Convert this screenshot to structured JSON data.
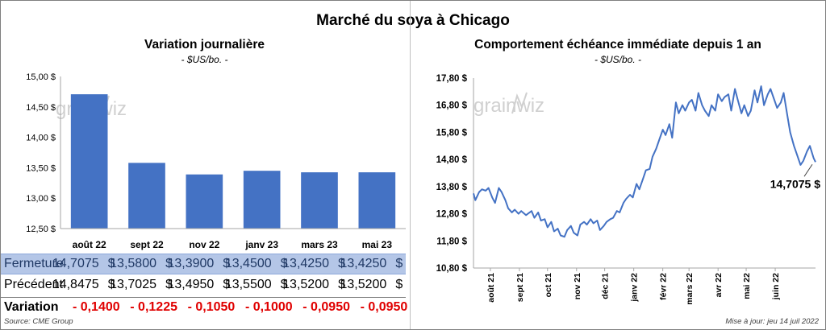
{
  "title": "Marché du soya à Chicago",
  "left": {
    "title": "Variation journalière",
    "unit": "- $US/bo. -",
    "watermark": "grainwiz"
  },
  "right": {
    "title": "Comportement échéance immédiate depuis 1 an",
    "unit": "- $US/bo. -",
    "watermark": "grainwiz",
    "last_label": "14,7075 $"
  },
  "table": {
    "currency": "$",
    "rows": {
      "fermeture": {
        "label": "Fermeture",
        "values": [
          "14,7075",
          "13,5800",
          "13,3900",
          "13,4500",
          "13,4250",
          "13,4250"
        ]
      },
      "precedent": {
        "label": "Précédent",
        "values": [
          "14,8475",
          "13,7025",
          "13,4950",
          "13,5500",
          "13,5200",
          "13,5200"
        ]
      },
      "variation": {
        "label": "Variation",
        "values": [
          "- 0,1400",
          "- 0,1225",
          "- 0,1050",
          "- 0,1000",
          "- 0,0950",
          "- 0,0950"
        ]
      }
    }
  },
  "footer": {
    "source": "Source: CME Group",
    "updated": "Mise à jour: jeu 14 juil 2022"
  },
  "colors": {
    "bar": "#4472c4",
    "line": "#4472c4",
    "negative": "#e00000",
    "highlight_row": "#b4c6e7"
  },
  "chart_data": [
    {
      "type": "bar",
      "title": "Variation journalière",
      "subtitle": "- $US/bo. -",
      "categories": [
        "août 22",
        "sept 22",
        "nov 22",
        "janv 23",
        "mars 23",
        "mai 23"
      ],
      "values": [
        14.7075,
        13.58,
        13.39,
        13.45,
        13.425,
        13.425
      ],
      "ylim": [
        12.5,
        15.0
      ],
      "yticks": [
        12.5,
        13.0,
        13.5,
        14.0,
        14.5,
        15.0
      ],
      "ytick_labels": [
        "12,50 $",
        "13,00 $",
        "13,50 $",
        "14,00 $",
        "14,50 $",
        "15,00 $"
      ],
      "grid": false,
      "legend": "none"
    },
    {
      "type": "line",
      "title": "Comportement échéance immédiate depuis 1 an",
      "subtitle": "- $US/bo. -",
      "ylim": [
        10.8,
        17.8
      ],
      "yticks": [
        10.8,
        11.8,
        12.8,
        13.8,
        14.8,
        15.8,
        16.8,
        17.8
      ],
      "ytick_labels": [
        "10,80 $",
        "11,80 $",
        "12,80 $",
        "13,80 $",
        "14,80 $",
        "15,80 $",
        "16,80 $",
        "17,80 $"
      ],
      "xlim": [
        "2021-07-14",
        "2022-07-14"
      ],
      "xticks": [
        "2021-08-01",
        "2021-09-01",
        "2021-10-01",
        "2021-11-01",
        "2021-12-01",
        "2022-01-01",
        "2022-02-01",
        "2022-03-01",
        "2022-04-01",
        "2022-05-01",
        "2022-06-01"
      ],
      "xtick_labels": [
        "août 21",
        "sept 21",
        "oct 21",
        "nov 21",
        "déc 21",
        "janv 22",
        "févr 22",
        "mars 22",
        "avr 22",
        "mai 22",
        "juin 22"
      ],
      "grid": false,
      "annotation": {
        "text": "14,7075 $",
        "x": "2022-07-14",
        "y": 14.7075
      },
      "series": [
        {
          "x": [
            "2021-07-14",
            "2021-07-16",
            "2021-07-20",
            "2021-07-23",
            "2021-07-27",
            "2021-07-30",
            "2021-08-03",
            "2021-08-06",
            "2021-08-10",
            "2021-08-13",
            "2021-08-17",
            "2021-08-20",
            "2021-08-24",
            "2021-08-27",
            "2021-08-31",
            "2021-09-03",
            "2021-09-08",
            "2021-09-10",
            "2021-09-14",
            "2021-09-17",
            "2021-09-21",
            "2021-09-24",
            "2021-09-28",
            "2021-10-01",
            "2021-10-05",
            "2021-10-08",
            "2021-10-12",
            "2021-10-15",
            "2021-10-19",
            "2021-10-22",
            "2021-10-26",
            "2021-10-29",
            "2021-11-02",
            "2021-11-05",
            "2021-11-09",
            "2021-11-12",
            "2021-11-16",
            "2021-11-19",
            "2021-11-23",
            "2021-11-26",
            "2021-11-30",
            "2021-12-03",
            "2021-12-07",
            "2021-12-10",
            "2021-12-14",
            "2021-12-17",
            "2021-12-21",
            "2021-12-24",
            "2021-12-28",
            "2021-12-31",
            "2022-01-04",
            "2022-01-07",
            "2022-01-11",
            "2022-01-14",
            "2022-01-18",
            "2022-01-21",
            "2022-01-25",
            "2022-01-28",
            "2022-02-01",
            "2022-02-04",
            "2022-02-08",
            "2022-02-11",
            "2022-02-15",
            "2022-02-18",
            "2022-02-22",
            "2022-02-25",
            "2022-03-01",
            "2022-03-04",
            "2022-03-08",
            "2022-03-11",
            "2022-03-15",
            "2022-03-18",
            "2022-03-22",
            "2022-03-25",
            "2022-03-29",
            "2022-04-01",
            "2022-04-05",
            "2022-04-08",
            "2022-04-12",
            "2022-04-15",
            "2022-04-19",
            "2022-04-22",
            "2022-04-26",
            "2022-04-29",
            "2022-05-03",
            "2022-05-06",
            "2022-05-10",
            "2022-05-13",
            "2022-05-17",
            "2022-05-20",
            "2022-05-24",
            "2022-05-27",
            "2022-05-31",
            "2022-06-03",
            "2022-06-07",
            "2022-06-10",
            "2022-06-14",
            "2022-06-17",
            "2022-06-21",
            "2022-06-24",
            "2022-06-28",
            "2022-07-01",
            "2022-07-05",
            "2022-07-08",
            "2022-07-12",
            "2022-07-14"
          ],
          "y": [
            13.55,
            13.3,
            13.6,
            13.7,
            13.65,
            13.75,
            13.4,
            13.2,
            13.75,
            13.6,
            13.3,
            13.0,
            12.85,
            12.95,
            12.8,
            12.9,
            12.75,
            12.8,
            12.9,
            12.65,
            12.85,
            12.55,
            12.6,
            12.3,
            12.5,
            12.15,
            12.25,
            12.0,
            11.95,
            12.2,
            12.35,
            12.1,
            12.0,
            12.4,
            12.5,
            12.4,
            12.6,
            12.45,
            12.55,
            12.2,
            12.35,
            12.5,
            12.6,
            12.65,
            12.9,
            12.85,
            13.2,
            13.35,
            13.5,
            13.4,
            13.9,
            13.7,
            14.1,
            14.4,
            14.45,
            14.9,
            15.2,
            15.5,
            15.9,
            15.7,
            16.1,
            15.6,
            16.9,
            16.5,
            16.8,
            16.6,
            16.9,
            17.0,
            16.6,
            17.25,
            16.8,
            16.6,
            16.4,
            16.8,
            16.6,
            17.2,
            16.95,
            17.1,
            17.2,
            16.6,
            17.4,
            17.0,
            16.5,
            16.8,
            16.4,
            16.6,
            17.35,
            16.9,
            17.5,
            16.8,
            17.2,
            17.4,
            17.0,
            16.7,
            16.9,
            17.25,
            16.4,
            15.8,
            15.3,
            15.0,
            14.6,
            14.75,
            15.1,
            15.3,
            14.85,
            14.7075
          ]
        }
      ]
    }
  ]
}
